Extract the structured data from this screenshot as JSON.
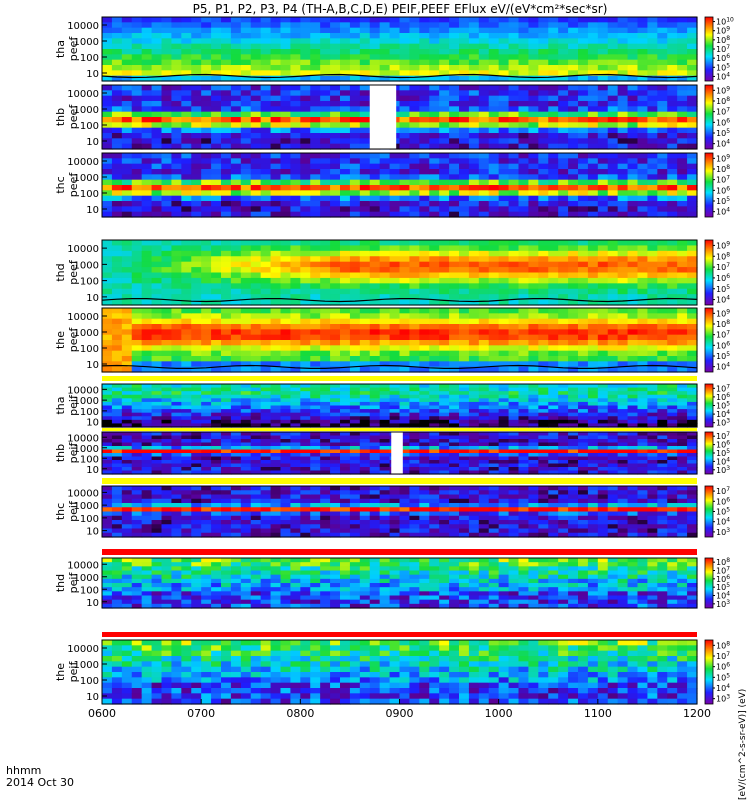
{
  "title": "P5, P1, P2, P3, P4 (TH-A,B,C,D,E) PEIF,PEEF EFlux eV/(eV*cm²*sec*sr)",
  "xaxis": {
    "label_line1": "hhmm",
    "label_line2": "2014 Oct 30",
    "ticks": [
      "0600",
      "0700",
      "0800",
      "0900",
      "1000",
      "1100",
      "1200"
    ]
  },
  "colorbar_unit_label": "[eV/(cm^2-s-sr-eV)] (eV)",
  "chart_data": {
    "type": "heatmap",
    "title": "P5, P1, P2, P3, P4 (TH-A,B,C,D,E) PEIF,PEEF EFlux eV/(eV*cm²*sec*sr)",
    "x_range": [
      "0600",
      "1200"
    ],
    "y_scale": "log",
    "y_ticks": [
      "10",
      "100",
      "1000",
      "10000"
    ],
    "panels": [
      {
        "label_top": "tha",
        "label_bottom": "peef",
        "species": "electron",
        "probe": "A",
        "colorbar_ticks": [
          "10^4",
          "10^5",
          "10^6",
          "10^7",
          "10^8",
          "10^9",
          "10^10"
        ],
        "colorbar_max_exp": 10,
        "has_overlay_line": true
      },
      {
        "label_top": "thb",
        "label_bottom": "peef",
        "species": "electron",
        "probe": "B",
        "colorbar_ticks": [
          "10^4",
          "10^5",
          "10^6",
          "10^7",
          "10^8",
          "10^9"
        ],
        "colorbar_max_exp": 9,
        "data_gap": [
          "0842",
          "0858"
        ]
      },
      {
        "label_top": "thc",
        "label_bottom": "peef",
        "species": "electron",
        "probe": "C",
        "colorbar_ticks": [
          "10^4",
          "10^5",
          "10^6",
          "10^7",
          "10^8",
          "10^9"
        ],
        "colorbar_max_exp": 9
      },
      {
        "label_top": "thd",
        "label_bottom": "peef",
        "species": "electron",
        "probe": "D",
        "colorbar_ticks": [
          "10^4",
          "10^5",
          "10^6",
          "10^7",
          "10^8",
          "10^9"
        ],
        "colorbar_max_exp": 9,
        "has_overlay_line": true
      },
      {
        "label_top": "the",
        "label_bottom": "peef",
        "species": "electron",
        "probe": "E",
        "colorbar_ticks": [
          "10^4",
          "10^5",
          "10^6",
          "10^7",
          "10^8",
          "10^9"
        ],
        "colorbar_max_exp": 9,
        "has_overlay_line": true
      },
      {
        "label_top": "tha",
        "label_bottom": "peif",
        "species": "ion",
        "probe": "A",
        "colorbar_ticks": [
          "10^3",
          "10^4",
          "10^5",
          "10^6",
          "10^7"
        ],
        "colorbar_max_exp": 7
      },
      {
        "label_top": "thb",
        "label_bottom": "peif",
        "species": "ion",
        "probe": "B",
        "colorbar_ticks": [
          "10^3",
          "10^4",
          "10^5",
          "10^6",
          "10^7"
        ],
        "colorbar_max_exp": 7,
        "data_gap": [
          "0855",
          "0902"
        ]
      },
      {
        "label_top": "thc",
        "label_bottom": "peif",
        "species": "ion",
        "probe": "C",
        "colorbar_ticks": [
          "10^3",
          "10^4",
          "10^5",
          "10^6",
          "10^7"
        ],
        "colorbar_max_exp": 7
      },
      {
        "label_top": "thd",
        "label_bottom": "peif",
        "species": "ion",
        "probe": "D",
        "colorbar_ticks": [
          "10^3",
          "10^4",
          "10^5",
          "10^6",
          "10^7",
          "10^8"
        ],
        "colorbar_max_exp": 8
      },
      {
        "label_top": "the",
        "label_bottom": "peif",
        "species": "ion",
        "probe": "E",
        "colorbar_ticks": [
          "10^3",
          "10^4",
          "10^5",
          "10^6",
          "10^7",
          "10^8"
        ],
        "colorbar_max_exp": 8
      }
    ]
  }
}
